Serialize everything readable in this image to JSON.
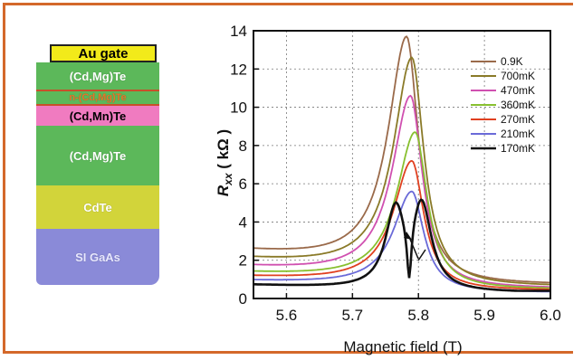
{
  "layer_stack": [
    {
      "label": "Au gate",
      "color": "#f2ea1a",
      "text_color": "#000000"
    },
    {
      "label": "(Cd,Mg)Te",
      "color": "#5cb85a",
      "text_color": "#ffffff"
    },
    {
      "label": "n-(Cd,Mg)Te",
      "color": "#5cb85a",
      "text_color": "#e8742a"
    },
    {
      "label": "(Cd,Mn)Te",
      "color": "#f07bc0",
      "text_color": "#000000"
    },
    {
      "label": "(Cd,Mg)Te",
      "color": "#5cb85a",
      "text_color": "#ffffff"
    },
    {
      "label": "CdTe",
      "color": "#d2d43a",
      "text_color": "#ffffff"
    },
    {
      "label": "SI GaAs",
      "color": "#8a8ad8",
      "text_color": "#e8e8ff"
    }
  ],
  "chart_data": {
    "type": "line",
    "xlabel": "Magnetic field (T)",
    "ylabel": "R_xx ( kΩ )",
    "xlim": [
      5.55,
      6.0
    ],
    "ylim": [
      0,
      14
    ],
    "xticks": [
      "5.6",
      "5.7",
      "5.8",
      "5.9",
      "6.0"
    ],
    "yticks": [
      "0",
      "2",
      "4",
      "6",
      "8",
      "10",
      "12",
      "14"
    ],
    "grid": true,
    "legend": "top-right",
    "series": [
      {
        "name": "0.9K",
        "color": "#9a6a4a",
        "peak_x": 5.782,
        "peak_y": 13.7,
        "base_left": 2.4,
        "base_right": 0.7
      },
      {
        "name": "700mK",
        "color": "#8a7a28",
        "peak_x": 5.79,
        "peak_y": 12.6,
        "base_left": 2.0,
        "base_right": 0.6
      },
      {
        "name": "470mK",
        "color": "#d050b0",
        "peak_x": 5.788,
        "peak_y": 10.6,
        "base_left": 1.6,
        "base_right": 0.5
      },
      {
        "name": "360mK",
        "color": "#88c030",
        "peak_x": 5.795,
        "peak_y": 8.7,
        "base_left": 1.3,
        "base_right": 0.45
      },
      {
        "name": "270mK",
        "color": "#e04020",
        "peak_x": 5.79,
        "peak_y": 7.2,
        "base_left": 1.1,
        "base_right": 0.4
      },
      {
        "name": "210mK",
        "color": "#6a6ad8",
        "peak_x": 5.79,
        "peak_y": 5.6,
        "base_left": 0.9,
        "base_right": 0.3
      },
      {
        "name": "170mK",
        "color": "#111111",
        "peak_x": 5.765,
        "peak_y": 4.4,
        "peak2_x": 5.805,
        "peak2_y": 4.6,
        "base_left": 0.7,
        "base_right": 0.3
      }
    ]
  }
}
